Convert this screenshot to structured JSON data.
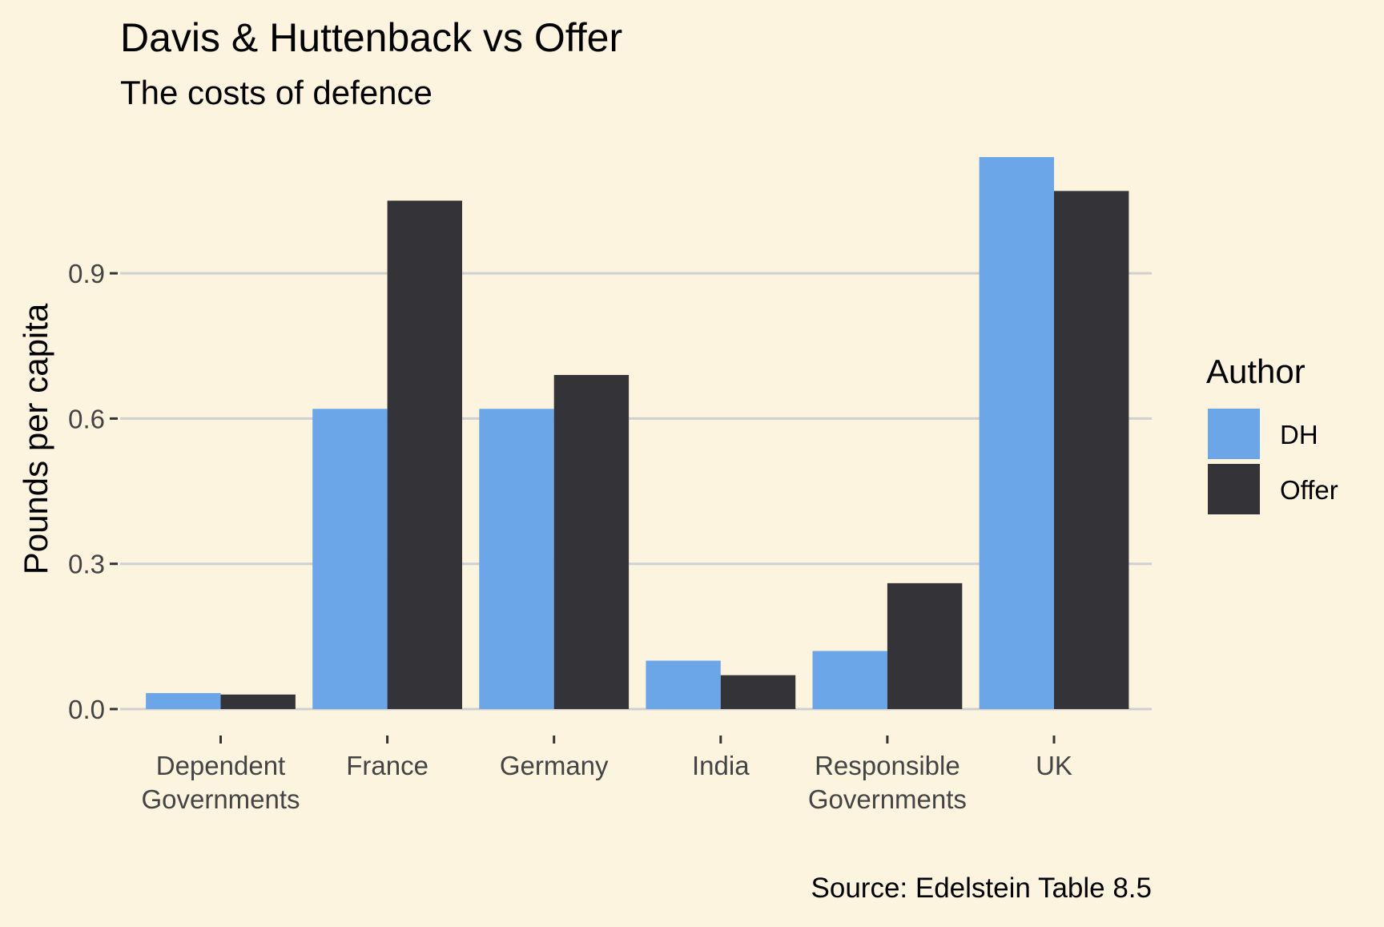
{
  "chart_data": {
    "type": "bar",
    "title": "Davis & Huttenback vs Offer",
    "subtitle": "The costs of defence",
    "xlabel": "",
    "ylabel": "Pounds per capita",
    "caption": "Source: Edelstein Table 8.5",
    "categories": [
      [
        "Dependent",
        "Governments"
      ],
      [
        "France"
      ],
      [
        "Germany"
      ],
      [
        "India"
      ],
      [
        "Responsible",
        "Governments"
      ],
      [
        "UK"
      ]
    ],
    "series": [
      {
        "name": "DH",
        "color": "#6ba6e8",
        "values": [
          0.033,
          0.62,
          0.62,
          0.1,
          0.12,
          1.14
        ]
      },
      {
        "name": "Offer",
        "color": "#343438",
        "values": [
          0.03,
          1.05,
          0.69,
          0.07,
          0.26,
          1.07
        ]
      }
    ],
    "ylim": [
      0,
      1.2
    ],
    "yticks": [
      "0.0",
      "0.3",
      "0.6",
      "0.9"
    ],
    "grid": "horizontal",
    "legend": {
      "title": "Author",
      "position": "right"
    },
    "colors": {
      "background": "#fcf4de",
      "grid": "#d0d0d0",
      "text": "#000000",
      "tick_text": "#444444"
    }
  }
}
